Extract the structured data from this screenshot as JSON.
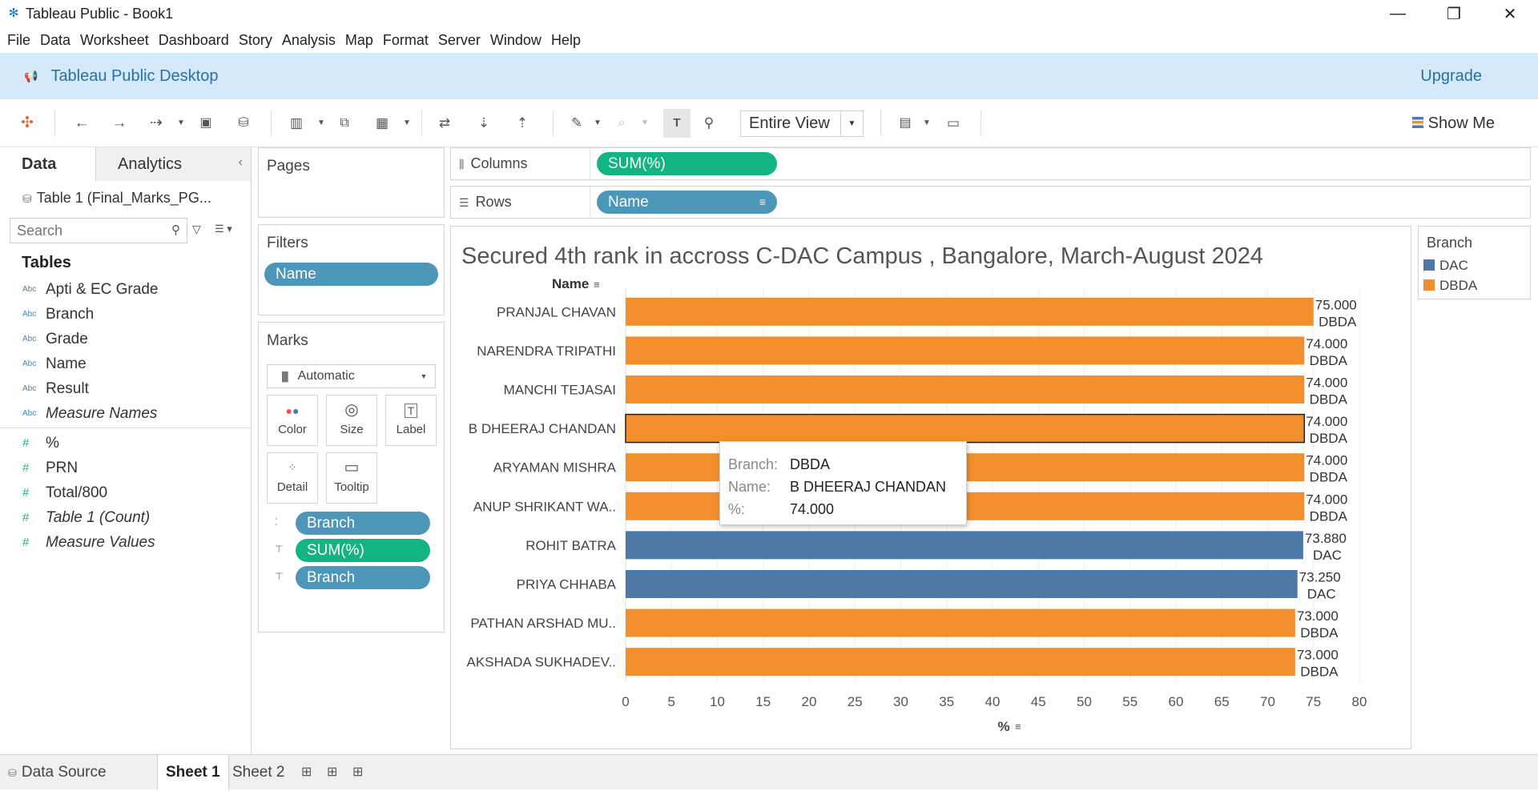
{
  "window": {
    "title": "Tableau Public - Book1",
    "controls": {
      "minimize": "—",
      "restore": "❐",
      "close": "✕"
    }
  },
  "menu": [
    "File",
    "Data",
    "Worksheet",
    "Dashboard",
    "Story",
    "Analysis",
    "Map",
    "Format",
    "Server",
    "Window",
    "Help"
  ],
  "banner": {
    "title": "Tableau Public Desktop",
    "upgrade": "Upgrade"
  },
  "toolbar": {
    "fit_label": "Entire View",
    "show_me": "Show Me"
  },
  "data_pane": {
    "tabs": [
      "Data",
      "Analytics"
    ],
    "datasource": "Table 1 (Final_Marks_PG...",
    "search_placeholder": "Search",
    "tables_heading": "Tables",
    "dimensions": [
      {
        "label": "Apti & EC Grade",
        "italic": false
      },
      {
        "label": "Branch",
        "italic": false
      },
      {
        "label": "Grade",
        "italic": false
      },
      {
        "label": "Name",
        "italic": false
      },
      {
        "label": "Result",
        "italic": false
      },
      {
        "label": "Measure Names",
        "italic": true
      }
    ],
    "measures": [
      {
        "label": "%",
        "italic": false
      },
      {
        "label": "PRN",
        "italic": false
      },
      {
        "label": "Total/800",
        "italic": false
      },
      {
        "label": "Table 1 (Count)",
        "italic": true
      },
      {
        "label": "Measure Values",
        "italic": true
      }
    ],
    "dim_icon": "Abc",
    "measure_icon": "#"
  },
  "cards": {
    "pages_title": "Pages",
    "filters_title": "Filters",
    "filters_pill": "Name",
    "marks_title": "Marks",
    "marks_type": "Automatic",
    "mark_buttons": [
      "Color",
      "Size",
      "Label",
      "Detail",
      "Tooltip"
    ],
    "mark_pills": [
      {
        "label": "Branch",
        "color": "blue",
        "icon": "color-dots-icon"
      },
      {
        "label": "SUM(%)",
        "color": "green",
        "icon": "label-icon"
      },
      {
        "label": "Branch",
        "color": "blue",
        "icon": "label-icon"
      }
    ]
  },
  "shelves": {
    "columns_label": "Columns",
    "columns_pill": "SUM(%)",
    "rows_label": "Rows",
    "rows_pill": "Name"
  },
  "legend": {
    "title": "Branch",
    "items": [
      {
        "label": "DAC",
        "color": "#4e79a7"
      },
      {
        "label": "DBDA",
        "color": "#f28e2b"
      }
    ]
  },
  "tooltip": {
    "rows": [
      {
        "key": "Branch:",
        "value": "DBDA"
      },
      {
        "key": "Name:",
        "value": "B DHEERAJ CHANDAN"
      },
      {
        "key": "%:",
        "value": "74.000"
      }
    ]
  },
  "bottom_tabs": {
    "data_source": "Data Source",
    "sheets": [
      "Sheet 1",
      "Sheet 2"
    ]
  },
  "chart_data": {
    "type": "bar",
    "orientation": "horizontal",
    "title": "Secured 4th rank in accross C-DAC Campus , Bangalore, March-August 2024",
    "ylabel": "Name",
    "xlabel": "%",
    "xlim": [
      0,
      80
    ],
    "x_ticks": [
      0,
      5,
      10,
      15,
      20,
      25,
      30,
      35,
      40,
      45,
      50,
      55,
      60,
      65,
      70,
      75,
      80
    ],
    "grid": true,
    "highlighted": "B DHEERAJ CHANDAN",
    "colors": {
      "DAC": "#4e79a7",
      "DBDA": "#f28e2b"
    },
    "categories": [
      "PRANJAL CHAVAN",
      "NARENDRA TRIPATHI",
      "MANCHI TEJASAI",
      "B DHEERAJ CHANDAN",
      "ARYAMAN MISHRA",
      "ANUP SHRIKANT WA..",
      "ROHIT BATRA",
      "PRIYA CHHABA",
      "PATHAN ARSHAD MU..",
      "AKSHADA SUKHADEV.."
    ],
    "values": [
      75.0,
      74.0,
      74.0,
      74.0,
      74.0,
      74.0,
      73.88,
      73.25,
      73.0,
      73.0
    ],
    "value_labels": [
      "75.000",
      "74.000",
      "74.000",
      "74.000",
      "74.000",
      "74.000",
      "73.880",
      "73.250",
      "73.000",
      "73.000"
    ],
    "branch": [
      "DBDA",
      "DBDA",
      "DBDA",
      "DBDA",
      "DBDA",
      "DBDA",
      "DAC",
      "DAC",
      "DBDA",
      "DBDA"
    ]
  }
}
